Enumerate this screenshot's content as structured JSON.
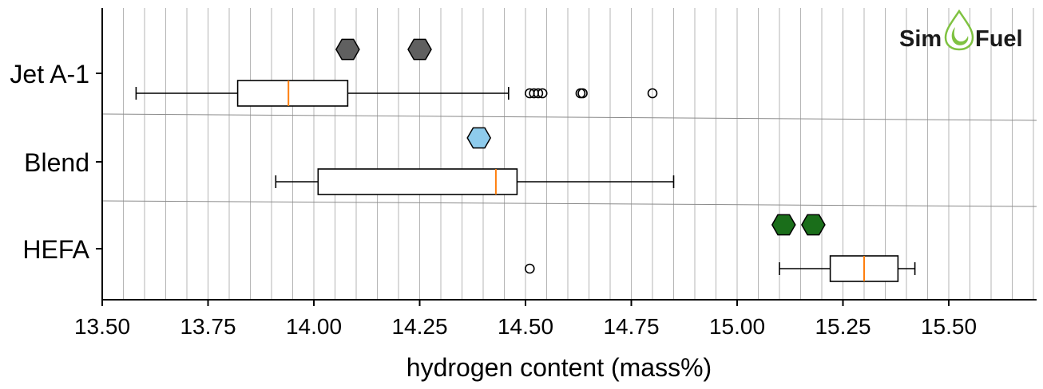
{
  "chart_data": {
    "type": "boxplot",
    "xlabel": "hydrogen content (mass%)",
    "xlim": [
      13.5,
      15.7
    ],
    "xticks": [
      "13.50",
      "13.75",
      "14.00",
      "14.25",
      "14.50",
      "14.75",
      "15.00",
      "15.25",
      "15.50"
    ],
    "grid": "vertical",
    "categories": [
      "Jet A-1",
      "Blend",
      "HEFA"
    ],
    "boxes": [
      {
        "category": "Jet A-1",
        "whisker_low": 13.58,
        "q1": 13.82,
        "median": 13.94,
        "q3": 14.08,
        "whisker_high": 14.46,
        "outliers": [
          14.51,
          14.52,
          14.53,
          14.54,
          14.63,
          14.635,
          14.8
        ]
      },
      {
        "category": "Blend",
        "whisker_low": 13.91,
        "q1": 14.01,
        "median": 14.43,
        "q3": 14.48,
        "whisker_high": 14.85,
        "outliers": []
      },
      {
        "category": "HEFA",
        "whisker_low": 15.1,
        "q1": 15.22,
        "median": 15.3,
        "q3": 15.38,
        "whisker_high": 15.42,
        "outliers": [
          14.51
        ]
      }
    ],
    "markers": [
      {
        "category": "Jet A-1",
        "values": [
          14.08,
          14.25
        ],
        "color": "#606060"
      },
      {
        "category": "Blend",
        "values": [
          14.39
        ],
        "color": "#8ecbec"
      },
      {
        "category": "HEFA",
        "values": [
          15.11,
          15.18
        ],
        "color": "#1a6e1a"
      }
    ],
    "colors": {
      "median": "#ff7f0e",
      "grid": "#b5b5b5",
      "separator": "#8a8a8a"
    }
  },
  "logo": {
    "left_text": "Sim",
    "right_text": "Fuel",
    "accent": "#7fc241"
  }
}
